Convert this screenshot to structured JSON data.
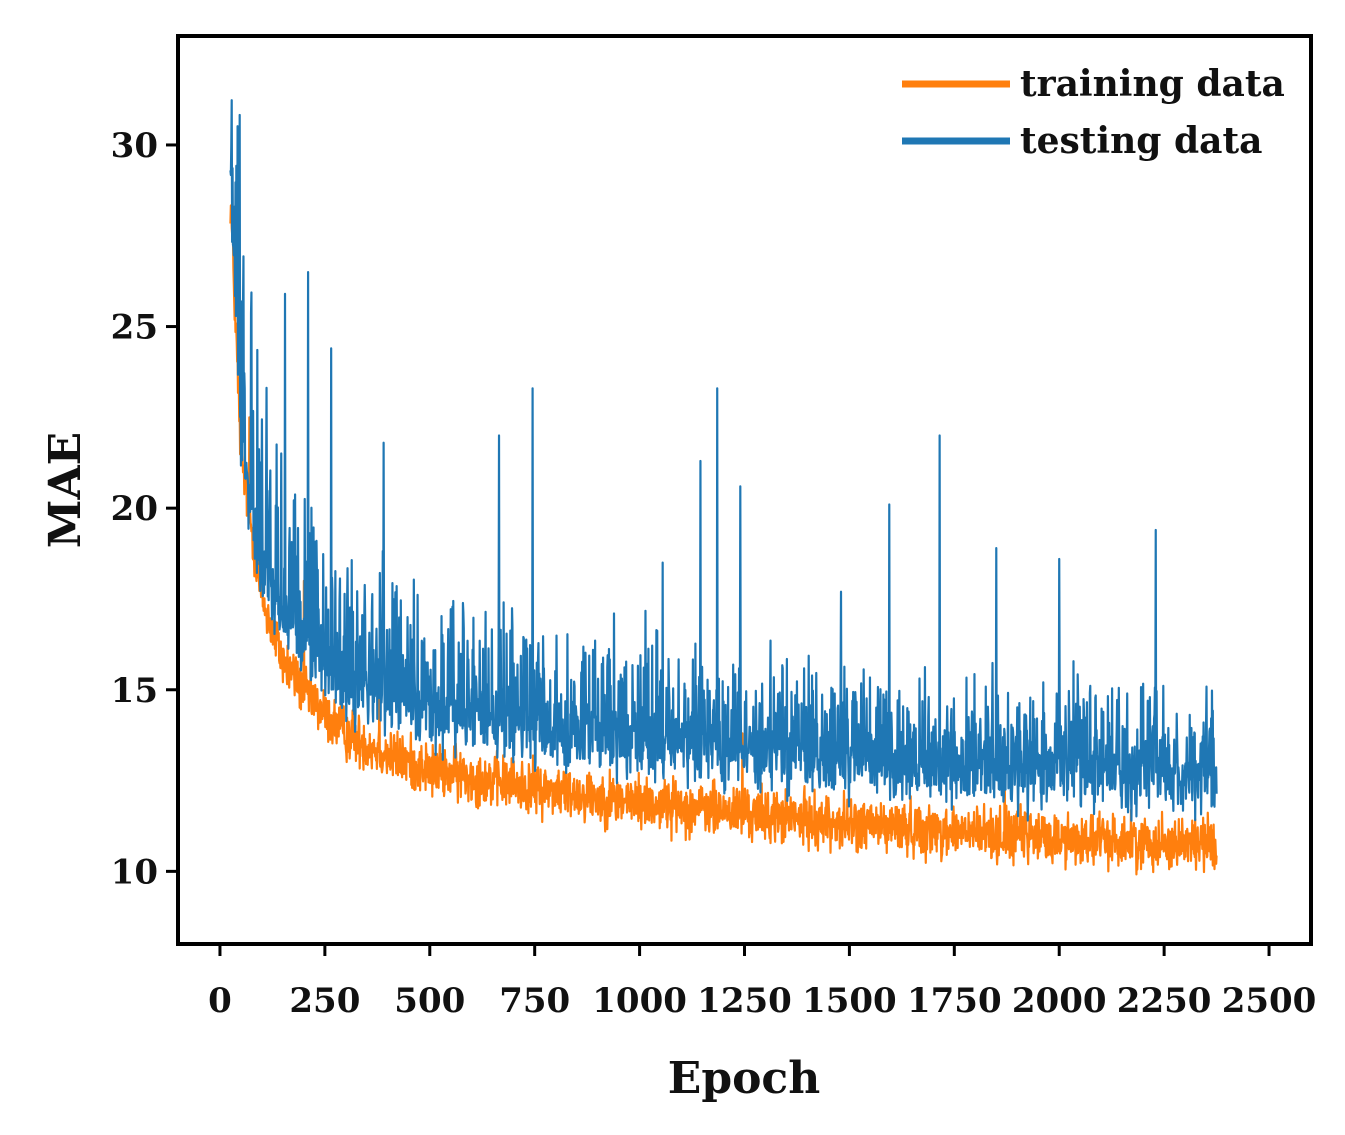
{
  "chart_data": {
    "type": "line",
    "title": "",
    "xlabel": "Epoch",
    "ylabel": "MAE",
    "xlim": [
      -100,
      2600
    ],
    "ylim": [
      8,
      33
    ],
    "xticks": [
      0,
      250,
      500,
      750,
      1000,
      1250,
      1500,
      1750,
      2000,
      2250,
      2500
    ],
    "xtick_labels": [
      "0",
      "250",
      "500",
      "750",
      "1000",
      "1250",
      "1500",
      "1750",
      "2000",
      "2250",
      "2500"
    ],
    "yticks": [
      10,
      15,
      20,
      25,
      30
    ],
    "ytick_labels": [
      "10",
      "15",
      "20",
      "25",
      "30"
    ],
    "grid": false,
    "legend_position": "top-right",
    "epoch_range": [
      25,
      2375
    ],
    "series": [
      {
        "name": "training data",
        "label": "training data",
        "color": "#ff7f0e",
        "trend_x": [
          25,
          50,
          100,
          150,
          200,
          250,
          300,
          400,
          500,
          750,
          1000,
          1250,
          1500,
          1750,
          2000,
          2250,
          2375
        ],
        "trend_y": [
          28.5,
          21.5,
          17.5,
          15.8,
          15.0,
          14.3,
          13.8,
          13.2,
          12.8,
          12.3,
          11.9,
          11.6,
          11.3,
          11.1,
          10.9,
          10.8,
          10.8
        ],
        "noise_amplitude": 0.45,
        "spikes": [
          [
            50,
            24.0
          ],
          [
            70,
            22.5
          ],
          [
            200,
            18.0
          ],
          [
            380,
            15.3
          ],
          [
            1245,
            13.8
          ],
          [
            1870,
            13.6
          ]
        ]
      },
      {
        "name": "testing data",
        "label": "testing data",
        "color": "#1f77b4",
        "trend_x": [
          25,
          50,
          100,
          150,
          200,
          250,
          300,
          400,
          500,
          750,
          1000,
          1250,
          1500,
          1750,
          2000,
          2250,
          2375
        ],
        "trend_y": [
          29.0,
          22.0,
          18.0,
          16.8,
          16.0,
          15.5,
          15.0,
          14.5,
          14.2,
          13.7,
          13.4,
          13.1,
          12.9,
          12.7,
          12.6,
          12.5,
          12.4
        ],
        "noise_amplitude": 0.9,
        "spikes": [
          [
            25,
            29.3
          ],
          [
            45,
            25.6
          ],
          [
            55,
            25.7
          ],
          [
            155,
            25.9
          ],
          [
            210,
            26.5
          ],
          [
            265,
            24.4
          ],
          [
            390,
            21.8
          ],
          [
            665,
            22.0
          ],
          [
            745,
            23.3
          ],
          [
            1145,
            21.3
          ],
          [
            1185,
            23.3
          ],
          [
            1240,
            20.6
          ],
          [
            1595,
            20.1
          ],
          [
            1715,
            22.0
          ],
          [
            2230,
            19.4
          ],
          [
            1850,
            18.9
          ],
          [
            2000,
            18.6
          ],
          [
            1055,
            18.5
          ],
          [
            1480,
            17.7
          ]
        ]
      }
    ]
  }
}
